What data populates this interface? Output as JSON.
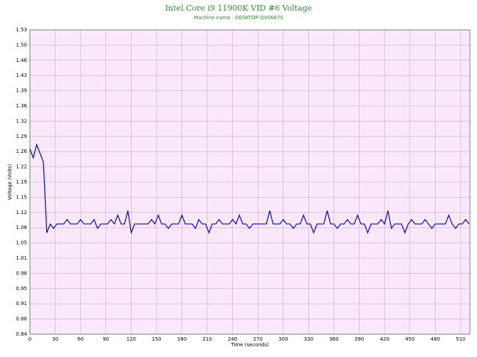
{
  "chart_data": {
    "type": "line",
    "title": "Intel Core i9 11900K VID #6 Voltage",
    "subtitle": "Machine name : DESKTOP-QV0687S",
    "x_label": "Time (seconds)",
    "y_label": "Voltage (Volts)",
    "xlim": [
      0,
      521
    ],
    "ylim": [
      0.84,
      1.53
    ],
    "xticks": [
      0,
      30,
      60,
      90,
      120,
      150,
      180,
      210,
      240,
      270,
      300,
      330,
      360,
      390,
      420,
      450,
      480,
      510
    ],
    "yticks": [
      {
        "value": 0.84,
        "label": "0.84"
      },
      {
        "value": 0.8745,
        "label": "0.88"
      },
      {
        "value": 0.909,
        "label": "0.91"
      },
      {
        "value": 0.9435,
        "label": "0.95"
      },
      {
        "value": 0.978,
        "label": "0.98"
      },
      {
        "value": 1.0125,
        "label": "1.01"
      },
      {
        "value": 1.047,
        "label": "1.05"
      },
      {
        "value": 1.0815,
        "label": "1.08"
      },
      {
        "value": 1.116,
        "label": "1.12"
      },
      {
        "value": 1.1505,
        "label": "1.15"
      },
      {
        "value": 1.185,
        "label": "1.19"
      },
      {
        "value": 1.2195,
        "label": "1.22"
      },
      {
        "value": 1.254,
        "label": "1.26"
      },
      {
        "value": 1.2885,
        "label": "1.29"
      },
      {
        "value": 1.323,
        "label": "1.32"
      },
      {
        "value": 1.3575,
        "label": "1.36"
      },
      {
        "value": 1.392,
        "label": "1.39"
      },
      {
        "value": 1.4265,
        "label": "1.43"
      },
      {
        "value": 1.461,
        "label": "1.46"
      },
      {
        "value": 1.4955,
        "label": "1.50"
      },
      {
        "value": 1.53,
        "label": "1.53"
      }
    ],
    "grid": true,
    "background": "#f9e8fa",
    "x": [
      0,
      4,
      8,
      12,
      16,
      20,
      24,
      28,
      32,
      36,
      40,
      44,
      48,
      52,
      56,
      60,
      64,
      68,
      72,
      76,
      80,
      84,
      88,
      92,
      96,
      100,
      104,
      108,
      112,
      116,
      120,
      124,
      128,
      132,
      136,
      140,
      144,
      148,
      152,
      156,
      160,
      164,
      168,
      172,
      176,
      180,
      184,
      188,
      192,
      196,
      200,
      204,
      208,
      212,
      216,
      220,
      224,
      228,
      232,
      236,
      240,
      244,
      248,
      252,
      256,
      260,
      264,
      268,
      272,
      276,
      280,
      284,
      288,
      292,
      296,
      300,
      304,
      308,
      312,
      316,
      320,
      324,
      328,
      332,
      336,
      340,
      344,
      348,
      352,
      356,
      360,
      364,
      368,
      372,
      376,
      380,
      384,
      388,
      392,
      396,
      400,
      404,
      408,
      412,
      416,
      420,
      424,
      428,
      432,
      436,
      440,
      444,
      448,
      452,
      456,
      460,
      464,
      468,
      472,
      476,
      480,
      484,
      488,
      492,
      496,
      500,
      504,
      508,
      512,
      516,
      520
    ],
    "series": [
      {
        "name": "VID #6 Voltage",
        "color": "#0000c0",
        "values": [
          1.26,
          1.24,
          1.27,
          1.25,
          1.23,
          1.07,
          1.09,
          1.08,
          1.09,
          1.09,
          1.09,
          1.1,
          1.09,
          1.09,
          1.09,
          1.1,
          1.09,
          1.09,
          1.09,
          1.1,
          1.08,
          1.09,
          1.09,
          1.09,
          1.1,
          1.09,
          1.11,
          1.09,
          1.09,
          1.12,
          1.07,
          1.09,
          1.09,
          1.09,
          1.09,
          1.09,
          1.1,
          1.09,
          1.11,
          1.09,
          1.09,
          1.08,
          1.09,
          1.09,
          1.09,
          1.11,
          1.09,
          1.09,
          1.09,
          1.08,
          1.1,
          1.09,
          1.09,
          1.07,
          1.09,
          1.09,
          1.1,
          1.09,
          1.09,
          1.09,
          1.1,
          1.09,
          1.11,
          1.09,
          1.09,
          1.08,
          1.09,
          1.09,
          1.09,
          1.09,
          1.09,
          1.12,
          1.09,
          1.09,
          1.09,
          1.1,
          1.09,
          1.09,
          1.08,
          1.09,
          1.09,
          1.11,
          1.09,
          1.09,
          1.07,
          1.09,
          1.09,
          1.09,
          1.12,
          1.09,
          1.09,
          1.08,
          1.09,
          1.09,
          1.1,
          1.09,
          1.09,
          1.11,
          1.09,
          1.09,
          1.07,
          1.09,
          1.09,
          1.09,
          1.1,
          1.09,
          1.12,
          1.08,
          1.09,
          1.09,
          1.09,
          1.07,
          1.09,
          1.1,
          1.09,
          1.09,
          1.09,
          1.1,
          1.09,
          1.08,
          1.09,
          1.09,
          1.09,
          1.09,
          1.11,
          1.09,
          1.08,
          1.09,
          1.09,
          1.1,
          1.09
        ]
      }
    ]
  }
}
